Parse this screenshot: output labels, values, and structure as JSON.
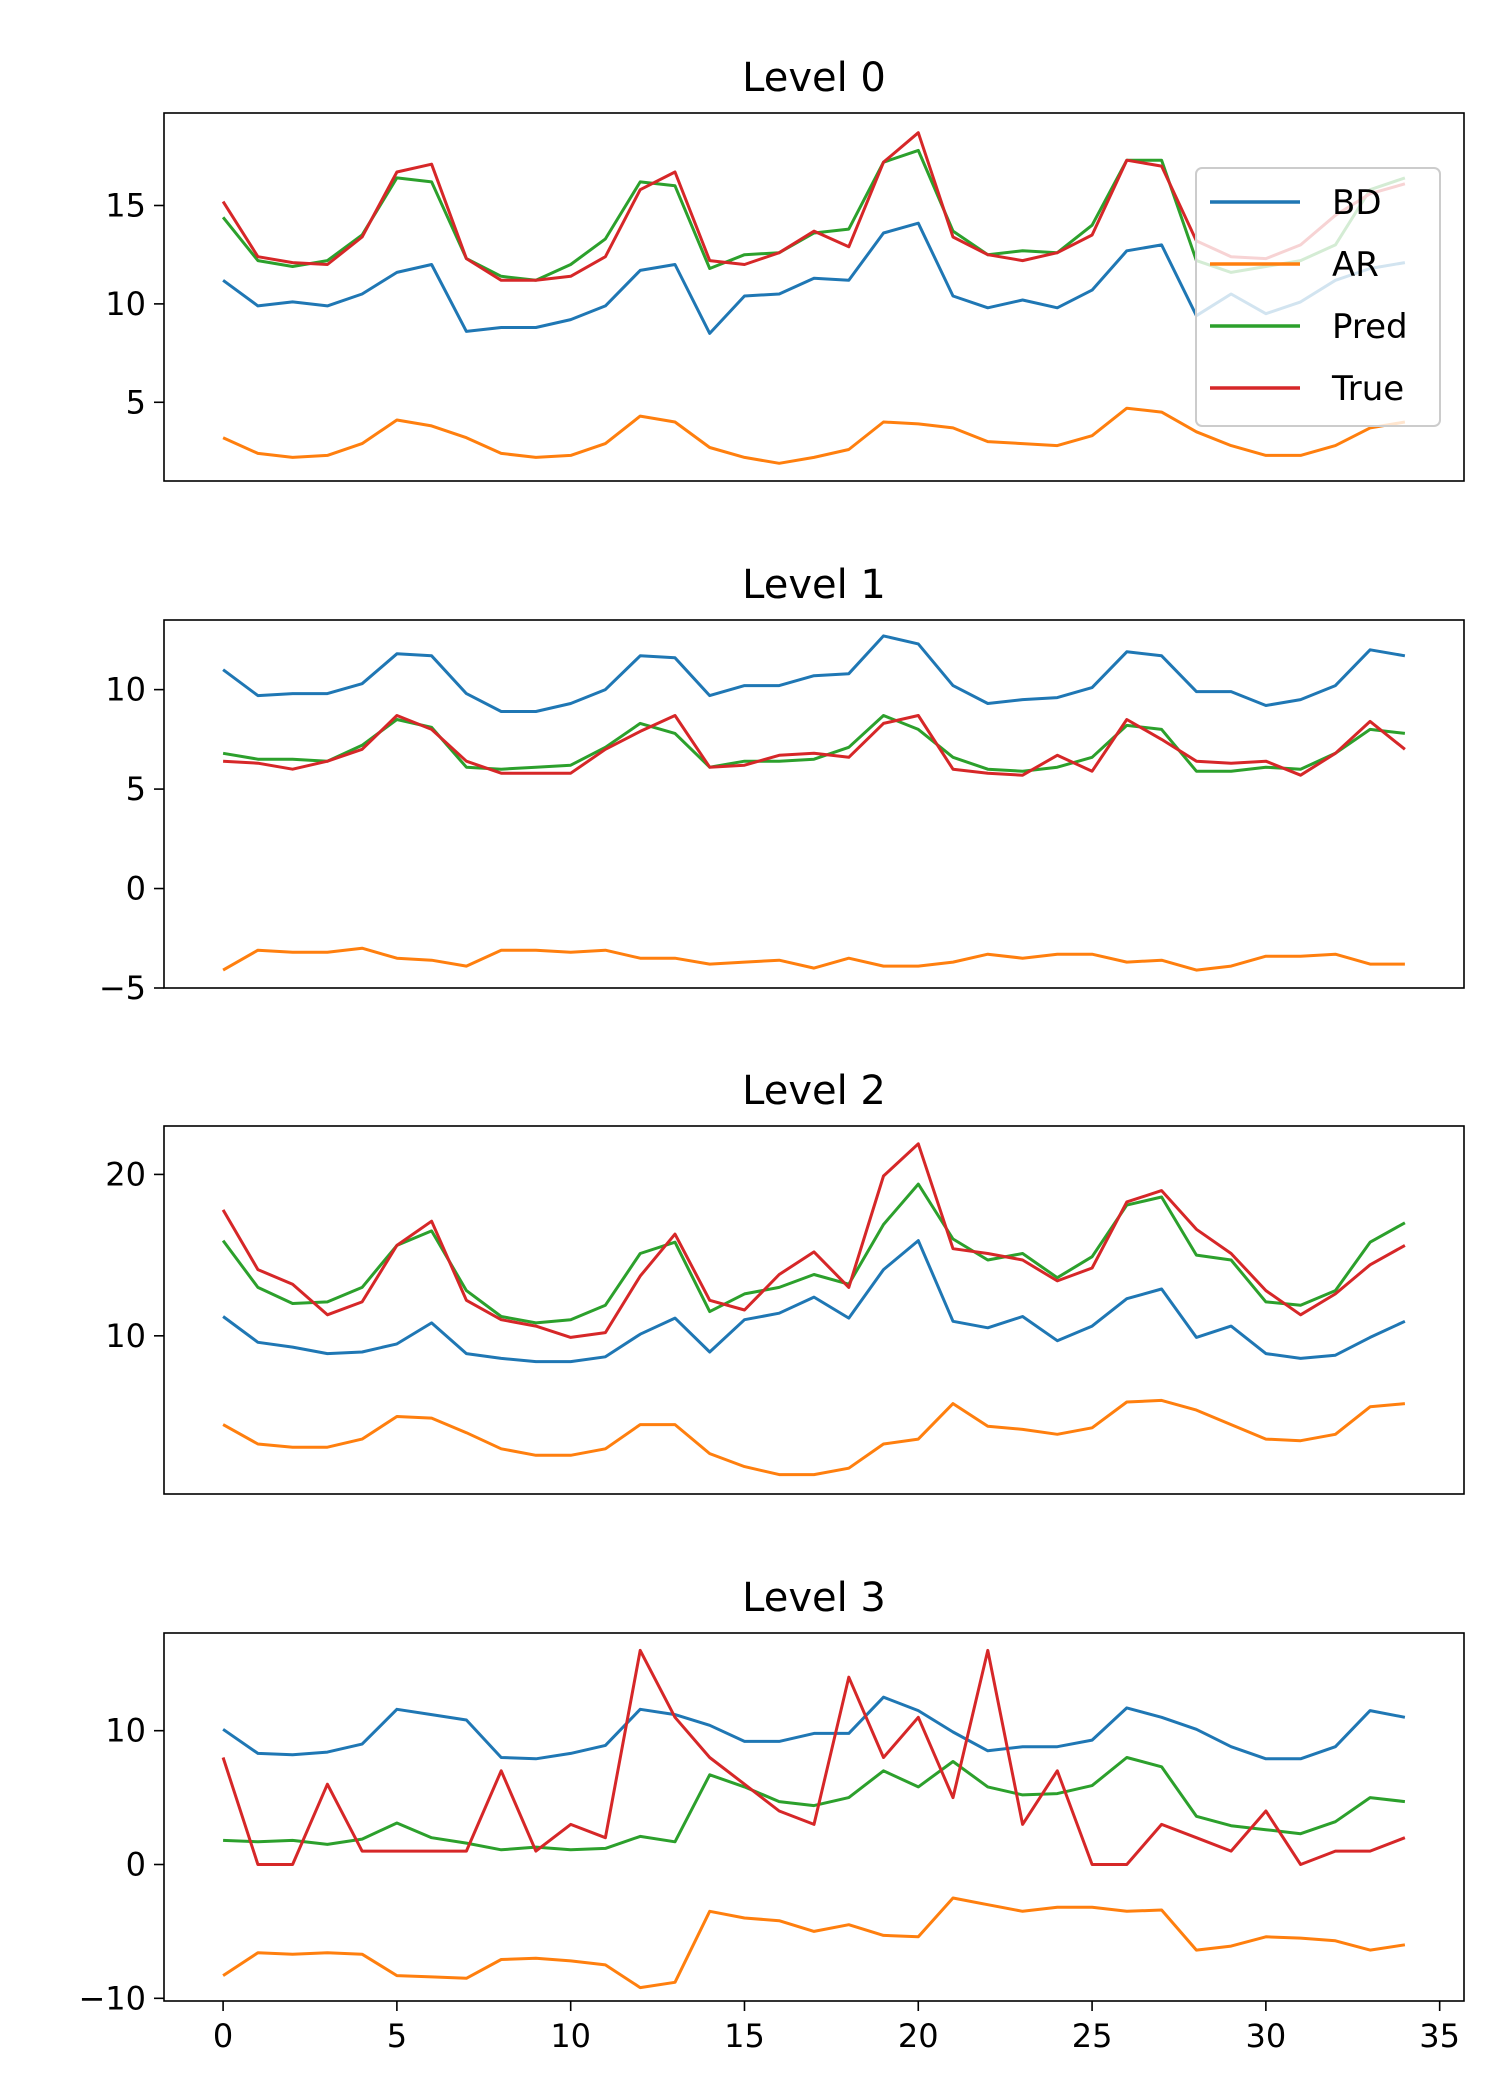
{
  "colors": {
    "BD": "#1f77b4",
    "AR": "#ff7f0e",
    "Pred": "#2ca02c",
    "True": "#d62728"
  },
  "chart_data": [
    {
      "type": "line",
      "title": "Level 0",
      "x": [
        0,
        1,
        2,
        3,
        4,
        5,
        6,
        7,
        8,
        9,
        10,
        11,
        12,
        13,
        14,
        15,
        16,
        17,
        18,
        19,
        20,
        21,
        22,
        23,
        24,
        25,
        26,
        27,
        28,
        29,
        30,
        31,
        32,
        33,
        34
      ],
      "ylim": [
        1,
        19.7
      ],
      "yticks": [
        5,
        10,
        15
      ],
      "legend": {
        "entries": [
          "BD",
          "AR",
          "Pred",
          "True"
        ],
        "placement": "upper right"
      },
      "series": [
        {
          "name": "BD",
          "values": [
            11.2,
            9.9,
            10.1,
            9.9,
            10.5,
            11.6,
            12.0,
            8.6,
            8.8,
            8.8,
            9.2,
            9.9,
            11.7,
            12.0,
            8.5,
            10.4,
            10.5,
            11.3,
            11.2,
            13.6,
            14.1,
            10.4,
            9.8,
            10.2,
            9.8,
            10.7,
            12.7,
            13.0,
            9.4,
            10.5,
            9.5,
            10.1,
            11.2,
            11.8,
            12.1
          ]
        },
        {
          "name": "AR",
          "values": [
            3.2,
            2.4,
            2.2,
            2.3,
            2.9,
            4.1,
            3.8,
            3.2,
            2.4,
            2.2,
            2.3,
            2.9,
            4.3,
            4.0,
            2.7,
            2.2,
            1.9,
            2.2,
            2.6,
            4.0,
            3.9,
            3.7,
            3.0,
            2.9,
            2.8,
            3.3,
            4.7,
            4.5,
            3.5,
            2.8,
            2.3,
            2.3,
            2.8,
            3.7,
            4.0
          ]
        },
        {
          "name": "Pred",
          "values": [
            14.4,
            12.2,
            11.9,
            12.2,
            13.5,
            16.4,
            16.2,
            12.3,
            11.4,
            11.2,
            12.0,
            13.3,
            16.2,
            16.0,
            11.8,
            12.5,
            12.6,
            13.6,
            13.8,
            17.2,
            17.8,
            13.7,
            12.5,
            12.7,
            12.6,
            14.0,
            17.3,
            17.3,
            12.2,
            11.6,
            11.9,
            12.2,
            13.0,
            15.8,
            16.4
          ]
        },
        {
          "name": "True",
          "values": [
            15.2,
            12.4,
            12.1,
            12.0,
            13.4,
            16.7,
            17.1,
            12.3,
            11.2,
            11.2,
            11.4,
            12.4,
            15.8,
            16.7,
            12.2,
            12.0,
            12.6,
            13.7,
            12.9,
            17.2,
            18.7,
            13.4,
            12.5,
            12.2,
            12.6,
            13.5,
            17.3,
            17.0,
            13.2,
            12.4,
            12.3,
            13.0,
            14.5,
            15.6,
            16.1
          ]
        }
      ]
    },
    {
      "type": "line",
      "title": "Level 1",
      "x": [
        0,
        1,
        2,
        3,
        4,
        5,
        6,
        7,
        8,
        9,
        10,
        11,
        12,
        13,
        14,
        15,
        16,
        17,
        18,
        19,
        20,
        21,
        22,
        23,
        24,
        25,
        26,
        27,
        28,
        29,
        30,
        31,
        32,
        33,
        34
      ],
      "ylim": [
        -5,
        13.5
      ],
      "yticks": [
        -5,
        0,
        5,
        10
      ],
      "series": [
        {
          "name": "BD",
          "values": [
            11.0,
            9.7,
            9.8,
            9.8,
            10.3,
            11.8,
            11.7,
            9.8,
            8.9,
            8.9,
            9.3,
            10.0,
            11.7,
            11.6,
            9.7,
            10.2,
            10.2,
            10.7,
            10.8,
            12.7,
            12.3,
            10.2,
            9.3,
            9.5,
            9.6,
            10.1,
            11.9,
            11.7,
            9.9,
            9.9,
            9.2,
            9.5,
            10.2,
            12.0,
            11.7
          ]
        },
        {
          "name": "AR",
          "values": [
            -4.1,
            -3.1,
            -3.2,
            -3.2,
            -3.0,
            -3.5,
            -3.6,
            -3.9,
            -3.1,
            -3.1,
            -3.2,
            -3.1,
            -3.5,
            -3.5,
            -3.8,
            -3.7,
            -3.6,
            -4.0,
            -3.5,
            -3.9,
            -3.9,
            -3.7,
            -3.3,
            -3.5,
            -3.3,
            -3.3,
            -3.7,
            -3.6,
            -4.1,
            -3.9,
            -3.4,
            -3.4,
            -3.3,
            -3.8,
            -3.8
          ]
        },
        {
          "name": "Pred",
          "values": [
            6.8,
            6.5,
            6.5,
            6.4,
            7.2,
            8.5,
            8.1,
            6.1,
            6.0,
            6.1,
            6.2,
            7.1,
            8.3,
            7.8,
            6.1,
            6.4,
            6.4,
            6.5,
            7.1,
            8.7,
            8.0,
            6.6,
            6.0,
            5.9,
            6.1,
            6.6,
            8.2,
            8.0,
            5.9,
            5.9,
            6.1,
            6.0,
            6.8,
            8.0,
            7.8
          ]
        },
        {
          "name": "True",
          "values": [
            6.4,
            6.3,
            6.0,
            6.4,
            7.0,
            8.7,
            8.0,
            6.4,
            5.8,
            5.8,
            5.8,
            7.0,
            7.9,
            8.7,
            6.1,
            6.2,
            6.7,
            6.8,
            6.6,
            8.3,
            8.7,
            6.0,
            5.8,
            5.7,
            6.7,
            5.9,
            8.5,
            7.5,
            6.4,
            6.3,
            6.4,
            5.7,
            6.8,
            8.4,
            7.0
          ]
        }
      ]
    },
    {
      "type": "line",
      "title": "Level 2",
      "x": [
        0,
        1,
        2,
        3,
        4,
        5,
        6,
        7,
        8,
        9,
        10,
        11,
        12,
        13,
        14,
        15,
        16,
        17,
        18,
        19,
        20,
        21,
        22,
        23,
        24,
        25,
        26,
        27,
        28,
        29,
        30,
        31,
        32,
        33,
        34
      ],
      "ylim": [
        0.2,
        23
      ],
      "yticks": [
        10,
        20
      ],
      "series": [
        {
          "name": "BD",
          "values": [
            11.2,
            9.6,
            9.3,
            8.9,
            9.0,
            9.5,
            10.8,
            8.9,
            8.6,
            8.4,
            8.4,
            8.7,
            10.1,
            11.1,
            9.0,
            11.0,
            11.4,
            12.4,
            11.1,
            14.1,
            15.9,
            10.9,
            10.5,
            11.2,
            9.7,
            10.6,
            12.3,
            12.9,
            9.9,
            10.6,
            8.9,
            8.6,
            8.8,
            9.9,
            10.9
          ]
        },
        {
          "name": "AR",
          "values": [
            4.5,
            3.3,
            3.1,
            3.1,
            3.6,
            5.0,
            4.9,
            4.0,
            3.0,
            2.6,
            2.6,
            3.0,
            4.5,
            4.5,
            2.7,
            1.9,
            1.4,
            1.4,
            1.8,
            3.3,
            3.6,
            5.8,
            4.4,
            4.2,
            3.9,
            4.3,
            5.9,
            6.0,
            5.4,
            4.5,
            3.6,
            3.5,
            3.9,
            5.6,
            5.8
          ]
        },
        {
          "name": "Pred",
          "values": [
            15.9,
            13.0,
            12.0,
            12.1,
            13.0,
            15.6,
            16.5,
            12.8,
            11.2,
            10.8,
            11.0,
            11.9,
            15.1,
            15.8,
            11.5,
            12.6,
            13.0,
            13.8,
            13.2,
            16.9,
            19.4,
            16.0,
            14.7,
            15.1,
            13.6,
            14.9,
            18.1,
            18.6,
            15.0,
            14.7,
            12.1,
            11.9,
            12.8,
            15.8,
            17.0
          ]
        },
        {
          "name": "True",
          "values": [
            17.8,
            14.1,
            13.2,
            11.3,
            12.1,
            15.6,
            17.1,
            12.2,
            11.0,
            10.6,
            9.9,
            10.2,
            13.7,
            16.3,
            12.2,
            11.6,
            13.8,
            15.2,
            13.0,
            19.9,
            21.9,
            15.4,
            15.1,
            14.7,
            13.4,
            14.2,
            18.3,
            19.0,
            16.6,
            15.1,
            12.8,
            11.3,
            12.6,
            14.4,
            15.6
          ]
        }
      ]
    },
    {
      "type": "line",
      "title": "Level 3",
      "x": [
        0,
        1,
        2,
        3,
        4,
        5,
        6,
        7,
        8,
        9,
        10,
        11,
        12,
        13,
        14,
        15,
        16,
        17,
        18,
        19,
        20,
        21,
        22,
        23,
        24,
        25,
        26,
        27,
        28,
        29,
        30,
        31,
        32,
        33,
        34
      ],
      "ylim": [
        -10.2,
        17.3
      ],
      "yticks": [
        -10,
        0,
        10
      ],
      "series": [
        {
          "name": "BD",
          "values": [
            10.1,
            8.3,
            8.2,
            8.4,
            9.0,
            11.6,
            11.2,
            10.8,
            8.0,
            7.9,
            8.3,
            8.9,
            11.6,
            11.2,
            10.4,
            9.2,
            9.2,
            9.8,
            9.8,
            12.5,
            11.5,
            9.9,
            8.5,
            8.8,
            8.8,
            9.3,
            11.7,
            11.0,
            10.1,
            8.8,
            7.9,
            7.9,
            8.8,
            11.5,
            11.0
          ]
        },
        {
          "name": "AR",
          "values": [
            -8.3,
            -6.6,
            -6.7,
            -6.6,
            -6.7,
            -8.3,
            -8.4,
            -8.5,
            -7.1,
            -7.0,
            -7.2,
            -7.5,
            -9.2,
            -8.8,
            -3.5,
            -4.0,
            -4.2,
            -5.0,
            -4.5,
            -5.3,
            -5.4,
            -2.5,
            -3.0,
            -3.5,
            -3.2,
            -3.2,
            -3.5,
            -3.4,
            -6.4,
            -6.1,
            -5.4,
            -5.5,
            -5.7,
            -6.4,
            -6.0
          ]
        },
        {
          "name": "Pred",
          "values": [
            1.8,
            1.7,
            1.8,
            1.5,
            1.9,
            3.1,
            2.0,
            1.6,
            1.1,
            1.3,
            1.1,
            1.2,
            2.1,
            1.7,
            6.7,
            5.8,
            4.7,
            4.4,
            5.0,
            7.0,
            5.8,
            7.7,
            5.8,
            5.2,
            5.3,
            5.9,
            8.0,
            7.3,
            3.6,
            2.9,
            2.6,
            2.3,
            3.2,
            5.0,
            4.7
          ]
        },
        {
          "name": "True",
          "values": [
            8.0,
            0.0,
            0.0,
            6.0,
            1.0,
            1.0,
            1.0,
            1.0,
            7.0,
            1.0,
            3.0,
            2.0,
            16.0,
            11.0,
            8.0,
            6.0,
            4.0,
            3.0,
            14.0,
            8.0,
            11.0,
            5.0,
            16.0,
            3.0,
            7.0,
            0.0,
            0.0,
            3.0,
            2.0,
            1.0,
            4.0,
            0.0,
            1.0,
            1.0,
            2.0
          ]
        }
      ]
    }
  ],
  "x_axis": {
    "xlim": [
      -1.7,
      35.7
    ],
    "ticks": [
      0,
      5,
      10,
      15,
      20,
      25,
      30,
      35
    ]
  }
}
